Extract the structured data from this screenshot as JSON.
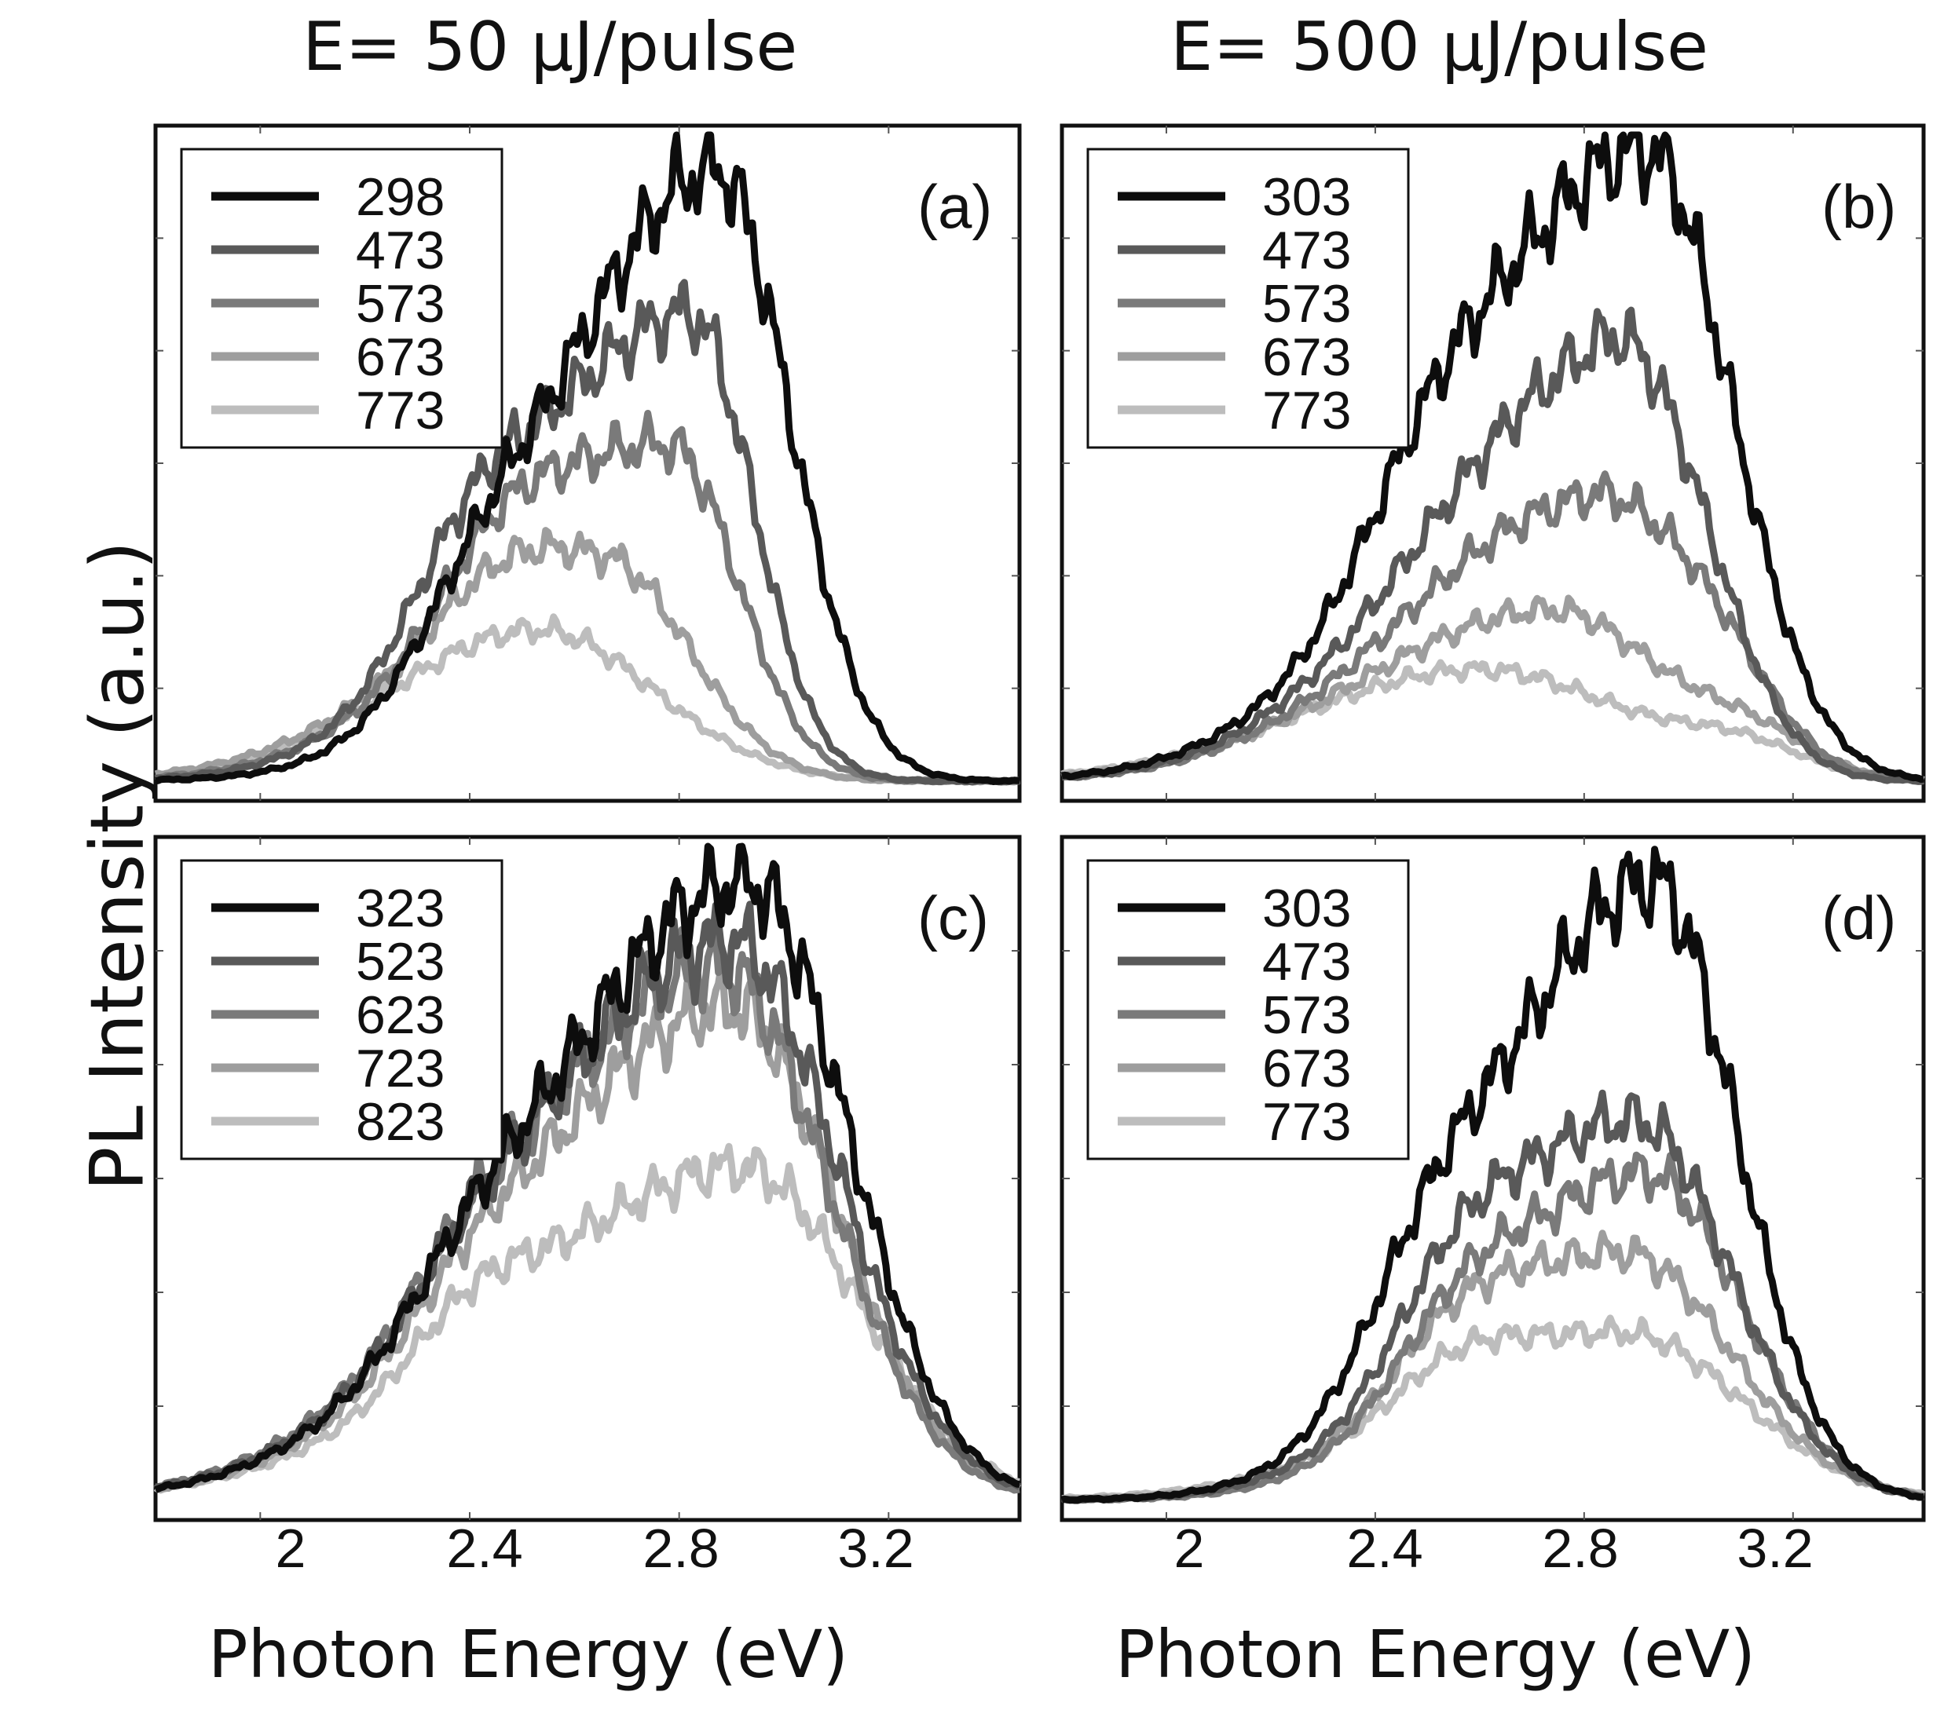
{
  "figure": {
    "col_titles": [
      "E= 50 µJ/pulse",
      "E= 500 µJ/pulse"
    ],
    "ylabel": "PL Intensity (a.u.)",
    "xlabel": "Photon Energy (eV)",
    "xticks": [
      "2",
      "2.4",
      "2.8",
      "3.2"
    ]
  },
  "chart_data": [
    {
      "type": "line",
      "panel": "(a)",
      "xlim": [
        1.8,
        3.45
      ],
      "ylim": [
        0,
        1.0
      ],
      "legend_position": "top-left",
      "series": [
        {
          "name": "298",
          "color": "#0d0d0d",
          "peak_x": 2.87,
          "peak_y": 0.93,
          "sigma_left": 0.3,
          "sigma_right": 0.14,
          "shoulder_x": 2.42,
          "shoulder_y": 0.1
        },
        {
          "name": "473",
          "color": "#595959",
          "peak_x": 2.82,
          "peak_y": 0.71,
          "sigma_left": 0.32,
          "sigma_right": 0.12,
          "shoulder_x": 2.4,
          "shoulder_y": 0.14
        },
        {
          "name": "573",
          "color": "#7a7a7a",
          "peak_x": 2.78,
          "peak_y": 0.51,
          "sigma_left": 0.33,
          "sigma_right": 0.13,
          "shoulder_x": 2.45,
          "shoulder_y": 0.1
        },
        {
          "name": "673",
          "color": "#9e9e9e",
          "peak_x": 2.66,
          "peak_y": 0.33,
          "sigma_left": 0.33,
          "sigma_right": 0.16,
          "shoulder_x": 2.45,
          "shoulder_y": 0.06
        },
        {
          "name": "773",
          "color": "#bdbdbd",
          "peak_x": 2.53,
          "peak_y": 0.23,
          "sigma_left": 0.28,
          "sigma_right": 0.22,
          "shoulder_x": 2.9,
          "shoulder_y": 0.0
        }
      ]
    },
    {
      "type": "line",
      "panel": "(b)",
      "xlim": [
        1.8,
        3.45
      ],
      "ylim": [
        0,
        1.0
      ],
      "legend_position": "top-left",
      "series": [
        {
          "name": "303",
          "color": "#0d0d0d",
          "peak_x": 2.92,
          "peak_y": 0.96,
          "sigma_left": 0.36,
          "sigma_right": 0.16,
          "shoulder_x": 2.5,
          "shoulder_y": 0.1
        },
        {
          "name": "473",
          "color": "#595959",
          "peak_x": 2.84,
          "peak_y": 0.63,
          "sigma_left": 0.34,
          "sigma_right": 0.16,
          "shoulder_x": 3.0,
          "shoulder_y": 0.1
        },
        {
          "name": "573",
          "color": "#7a7a7a",
          "peak_x": 2.8,
          "peak_y": 0.42,
          "sigma_left": 0.34,
          "sigma_right": 0.18,
          "shoulder_x": 3.05,
          "shoulder_y": 0.12
        },
        {
          "name": "673",
          "color": "#9e9e9e",
          "peak_x": 2.74,
          "peak_y": 0.26,
          "sigma_left": 0.36,
          "sigma_right": 0.2,
          "shoulder_x": 3.12,
          "shoulder_y": 0.06
        },
        {
          "name": "773",
          "color": "#bdbdbd",
          "peak_x": 2.6,
          "peak_y": 0.17,
          "sigma_left": 0.34,
          "sigma_right": 0.28,
          "shoulder_x": 3.1,
          "shoulder_y": 0.04
        }
      ]
    },
    {
      "type": "line",
      "panel": "(c)",
      "xlim": [
        1.8,
        3.45
      ],
      "ylim": [
        0,
        1.0
      ],
      "legend_position": "top-left",
      "series": [
        {
          "name": "323",
          "color": "#0d0d0d",
          "peak_x": 2.93,
          "peak_y": 0.93,
          "sigma_left": 0.4,
          "sigma_right": 0.19,
          "shoulder_x": 2.4,
          "shoulder_y": 0.06
        },
        {
          "name": "523",
          "color": "#595959",
          "peak_x": 2.9,
          "peak_y": 0.84,
          "sigma_left": 0.4,
          "sigma_right": 0.2,
          "shoulder_x": 2.4,
          "shoulder_y": 0.06
        },
        {
          "name": "623",
          "color": "#7a7a7a",
          "peak_x": 2.88,
          "peak_y": 0.8,
          "sigma_left": 0.4,
          "sigma_right": 0.2,
          "shoulder_x": 2.4,
          "shoulder_y": 0.06
        },
        {
          "name": "723",
          "color": "#9e9e9e",
          "peak_x": 2.9,
          "peak_y": 0.74,
          "sigma_left": 0.4,
          "sigma_right": 0.2,
          "shoulder_x": 2.4,
          "shoulder_y": 0.06
        },
        {
          "name": "823",
          "color": "#bdbdbd",
          "peak_x": 2.92,
          "peak_y": 0.5,
          "sigma_left": 0.43,
          "sigma_right": 0.22,
          "shoulder_x": 2.4,
          "shoulder_y": 0.08
        }
      ]
    },
    {
      "type": "line",
      "panel": "(d)",
      "xlim": [
        1.8,
        3.45
      ],
      "ylim": [
        0,
        1.0
      ],
      "legend_position": "top-left",
      "series": [
        {
          "name": "303",
          "color": "#0d0d0d",
          "peak_x": 2.93,
          "peak_y": 0.93,
          "sigma_left": 0.3,
          "sigma_right": 0.16,
          "shoulder_x": 2.5,
          "shoulder_y": 0.14
        },
        {
          "name": "473",
          "color": "#595959",
          "peak_x": 2.9,
          "peak_y": 0.57,
          "sigma_left": 0.3,
          "sigma_right": 0.18,
          "shoulder_x": 2.55,
          "shoulder_y": 0.12
        },
        {
          "name": "573",
          "color": "#7a7a7a",
          "peak_x": 2.92,
          "peak_y": 0.49,
          "sigma_left": 0.3,
          "sigma_right": 0.18,
          "shoulder_x": 2.55,
          "shoulder_y": 0.1
        },
        {
          "name": "673",
          "color": "#9e9e9e",
          "peak_x": 2.88,
          "peak_y": 0.37,
          "sigma_left": 0.32,
          "sigma_right": 0.2,
          "shoulder_x": 2.55,
          "shoulder_y": 0.08
        },
        {
          "name": "773",
          "color": "#bdbdbd",
          "peak_x": 2.88,
          "peak_y": 0.25,
          "sigma_left": 0.36,
          "sigma_right": 0.22,
          "shoulder_x": 2.55,
          "shoulder_y": 0.06
        }
      ]
    }
  ]
}
